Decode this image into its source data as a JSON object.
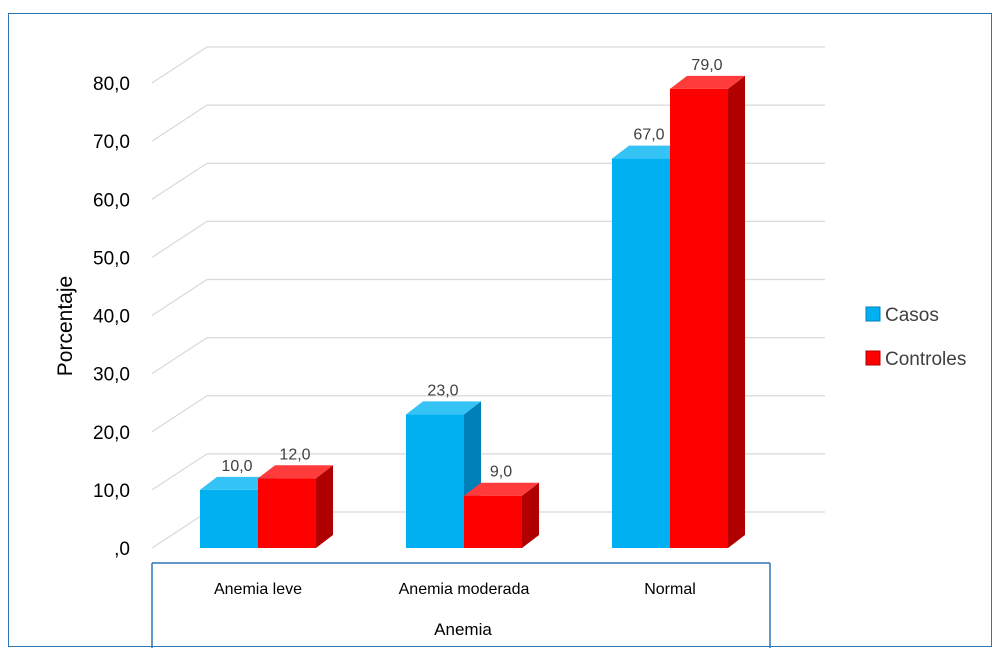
{
  "chart_data": {
    "type": "bar",
    "categories": [
      "Anemia leve",
      "Anemia moderada",
      "Normal"
    ],
    "series": [
      {
        "name": "Casos",
        "values": [
          10.0,
          23.0,
          67.0
        ],
        "color": "#00B0F0",
        "side_color": "#0080B8",
        "top_color": "#35C3F5"
      },
      {
        "name": "Controles",
        "values": [
          12.0,
          9.0,
          79.0
        ],
        "color": "#FF0000",
        "side_color": "#B00000",
        "top_color": "#FF3B3B"
      }
    ],
    "data_labels": [
      [
        "10,0",
        "23,0",
        "67,0"
      ],
      [
        "12,0",
        "9,0",
        "79,0"
      ]
    ],
    "xlabel": "Anemia",
    "ylabel": "Porcentaje",
    "ylim": [
      0,
      80
    ],
    "yticks": [
      ",0",
      "10,0",
      "20,0",
      "30,0",
      "40,0",
      "50,0",
      "60,0",
      "70,0",
      "80,0"
    ],
    "grid": true,
    "legend_position": "right",
    "three_d": true
  }
}
